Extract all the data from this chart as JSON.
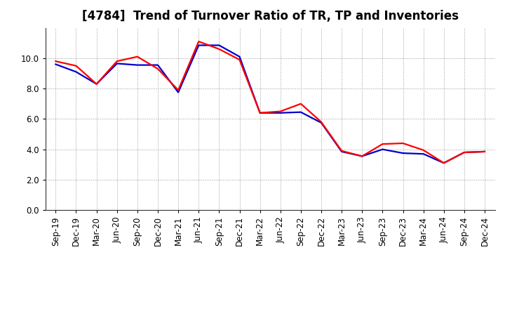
{
  "title": "[4784]  Trend of Turnover Ratio of TR, TP and Inventories",
  "x_labels": [
    "Sep-19",
    "Dec-19",
    "Mar-20",
    "Jun-20",
    "Sep-20",
    "Dec-20",
    "Mar-21",
    "Jun-21",
    "Sep-21",
    "Dec-21",
    "Mar-22",
    "Jun-22",
    "Sep-22",
    "Dec-22",
    "Mar-23",
    "Jun-23",
    "Sep-23",
    "Dec-23",
    "Mar-24",
    "Jun-24",
    "Sep-24",
    "Dec-24"
  ],
  "trade_receivables": [
    9.8,
    9.5,
    8.3,
    9.8,
    10.1,
    9.3,
    7.9,
    11.1,
    10.6,
    9.9,
    6.4,
    6.5,
    7.0,
    5.8,
    3.9,
    3.55,
    4.35,
    4.4,
    3.95,
    3.1,
    3.8,
    3.85
  ],
  "trade_payables": [
    9.6,
    9.1,
    8.3,
    9.65,
    9.55,
    9.55,
    7.75,
    10.85,
    10.85,
    10.1,
    6.4,
    6.4,
    6.45,
    5.75,
    3.85,
    3.55,
    4.0,
    3.75,
    3.7,
    3.1,
    3.8,
    3.85
  ],
  "inventories": [
    null,
    null,
    null,
    null,
    null,
    null,
    null,
    null,
    null,
    null,
    null,
    null,
    null,
    null,
    null,
    null,
    null,
    null,
    null,
    null,
    null,
    null
  ],
  "tr_color": "#ff0000",
  "tp_color": "#0000cd",
  "inv_color": "#008000",
  "ylim": [
    0.0,
    12.0
  ],
  "yticks": [
    0.0,
    2.0,
    4.0,
    6.0,
    8.0,
    10.0
  ],
  "grid_color": "#999999",
  "background_color": "#ffffff",
  "title_fontsize": 12,
  "legend_fontsize": 10,
  "tick_fontsize": 8.5
}
